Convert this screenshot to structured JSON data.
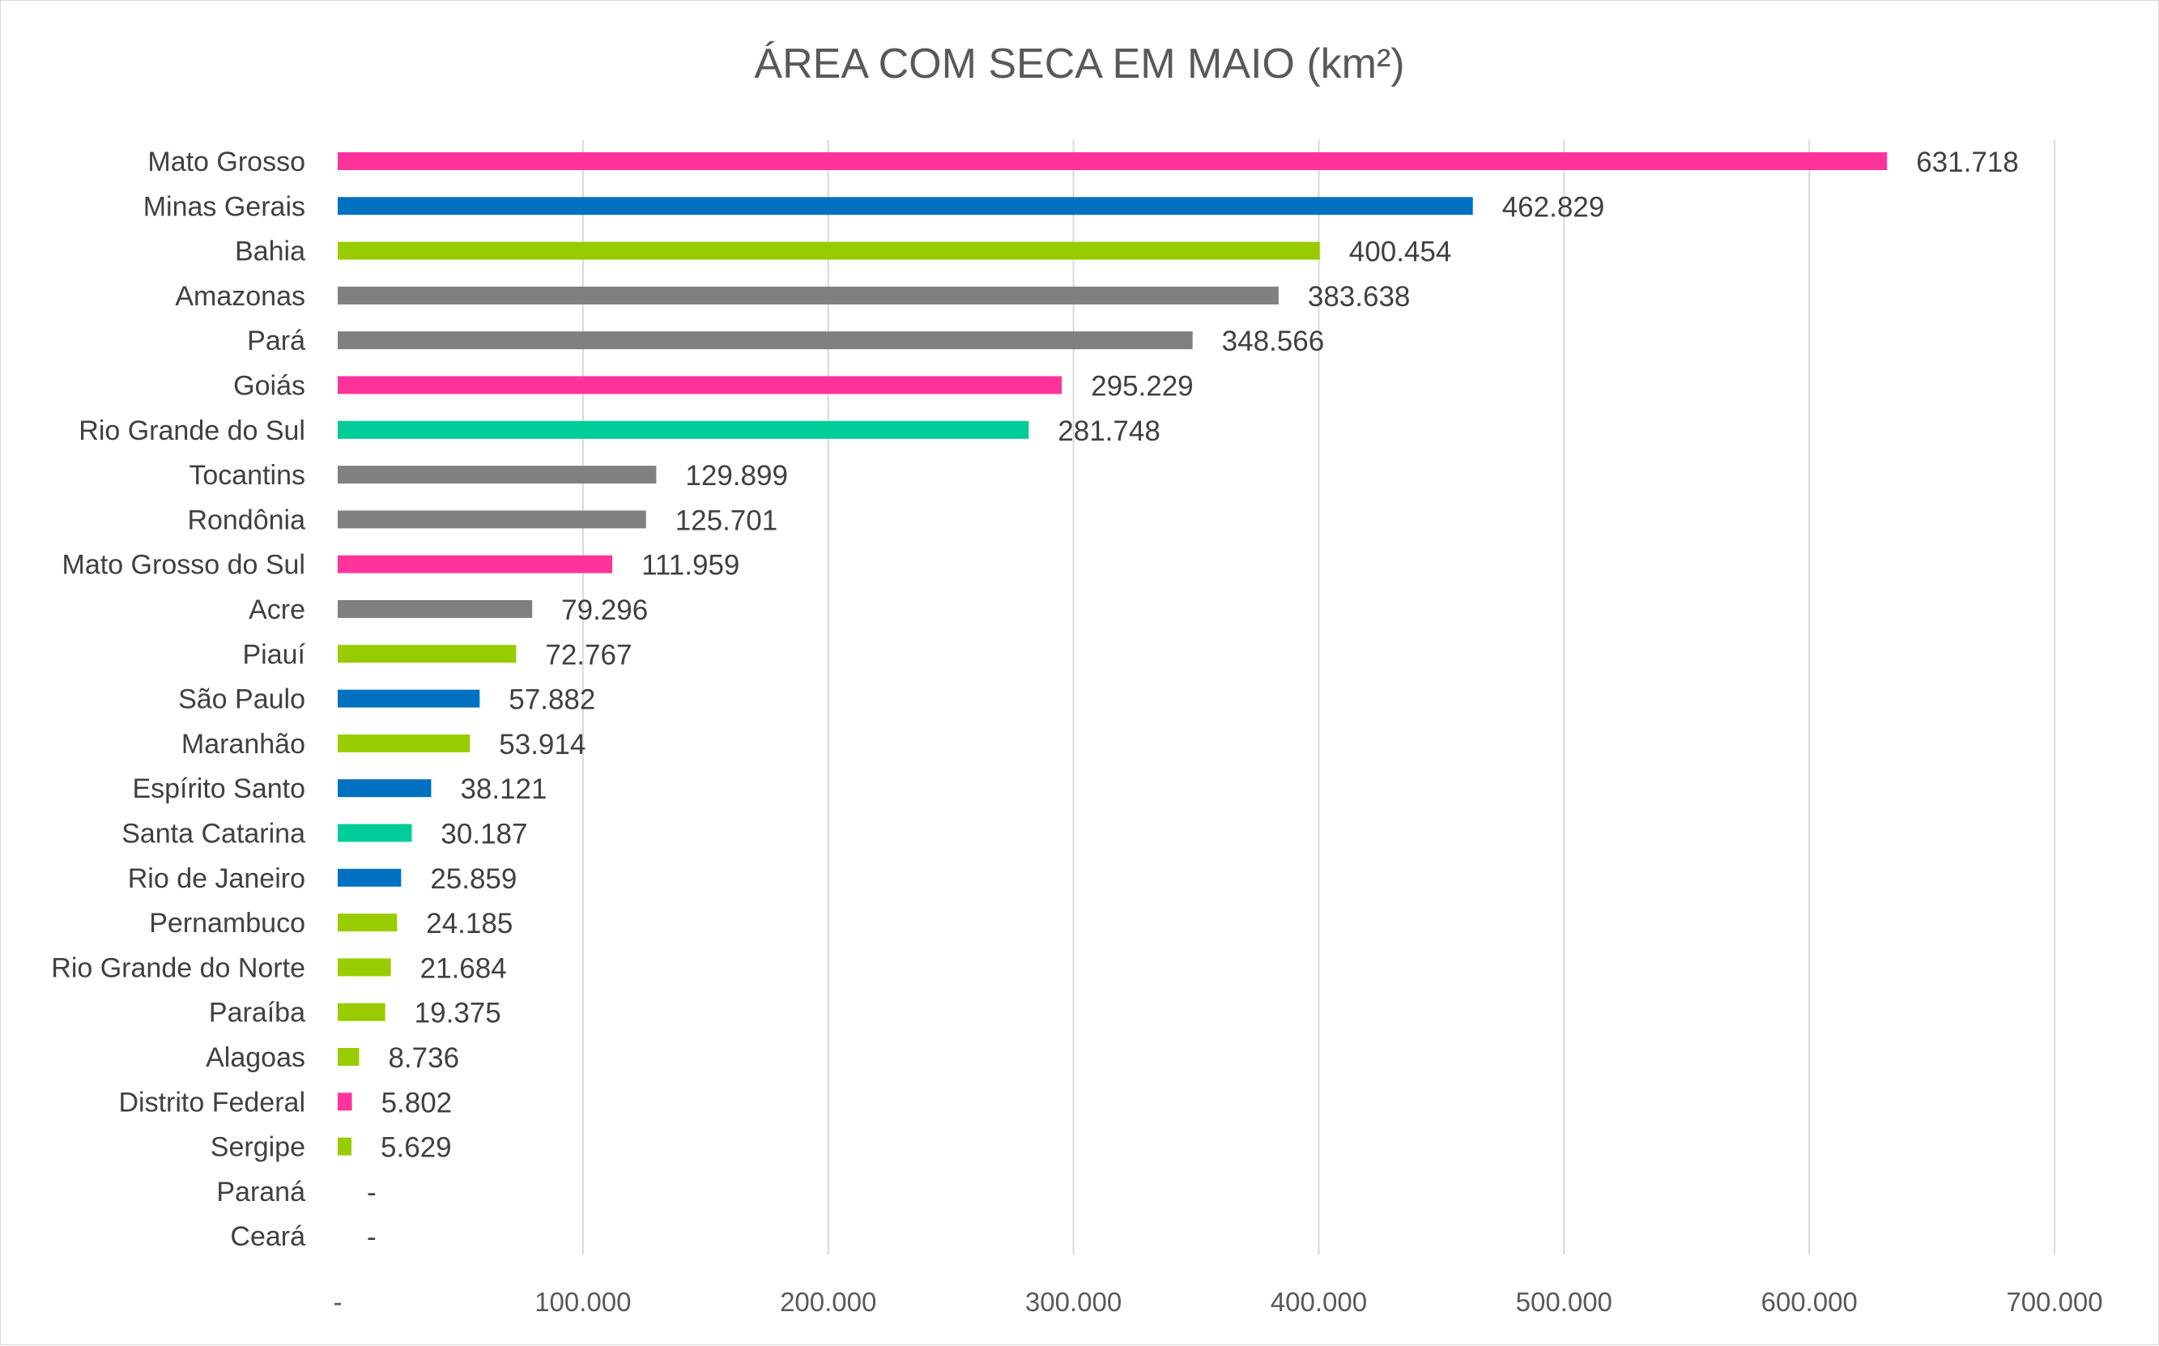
{
  "chart_data": {
    "type": "bar",
    "orientation": "horizontal",
    "title": "ÁREA COM SECA EM MAIO (km²)",
    "xlim": [
      0,
      700000
    ],
    "x_ticks": [
      0,
      100000,
      200000,
      300000,
      400000,
      500000,
      600000,
      700000
    ],
    "x_tick_labels": [
      "-",
      "100.000",
      "200.000",
      "300.000",
      "400.000",
      "500.000",
      "600.000",
      "700.000"
    ],
    "grid": true,
    "legend": "none",
    "categories": [
      "Mato Grosso",
      "Minas Gerais",
      "Bahia",
      "Amazonas",
      "Pará",
      "Goiás",
      "Rio Grande do Sul",
      "Tocantins",
      "Rondônia",
      "Mato Grosso do Sul",
      "Acre",
      "Piauí",
      "São Paulo",
      "Maranhão",
      "Espírito Santo",
      "Santa Catarina",
      "Rio de Janeiro",
      "Pernambuco",
      "Rio Grande do Norte",
      "Paraíba",
      "Alagoas",
      "Distrito Federal",
      "Sergipe",
      "Paraná",
      "Ceará"
    ],
    "values": [
      631718,
      462829,
      400454,
      383638,
      348566,
      295229,
      281748,
      129899,
      125701,
      111959,
      79296,
      72767,
      57882,
      53914,
      38121,
      30187,
      25859,
      24185,
      21684,
      19375,
      8736,
      5802,
      5629,
      0,
      0
    ],
    "data_labels": [
      "631.718",
      "462.829",
      "400.454",
      "383.638",
      "348.566",
      "295.229",
      "281.748",
      "129.899",
      "125.701",
      "111.959",
      "79.296",
      "72.767",
      "57.882",
      "53.914",
      "38.121",
      "30.187",
      "25.859",
      "24.185",
      "21.684",
      "19.375",
      "8.736",
      "5.802",
      "5.629",
      "-",
      "-"
    ],
    "bar_colors": [
      "#ff3399",
      "#0070c0",
      "#99cc00",
      "#808080",
      "#808080",
      "#ff3399",
      "#00cc99",
      "#808080",
      "#808080",
      "#ff3399",
      "#808080",
      "#99cc00",
      "#0070c0",
      "#99cc00",
      "#0070c0",
      "#00cc99",
      "#0070c0",
      "#99cc00",
      "#99cc00",
      "#99cc00",
      "#99cc00",
      "#ff3399",
      "#99cc00",
      "#99cc00",
      "#99cc00"
    ]
  }
}
